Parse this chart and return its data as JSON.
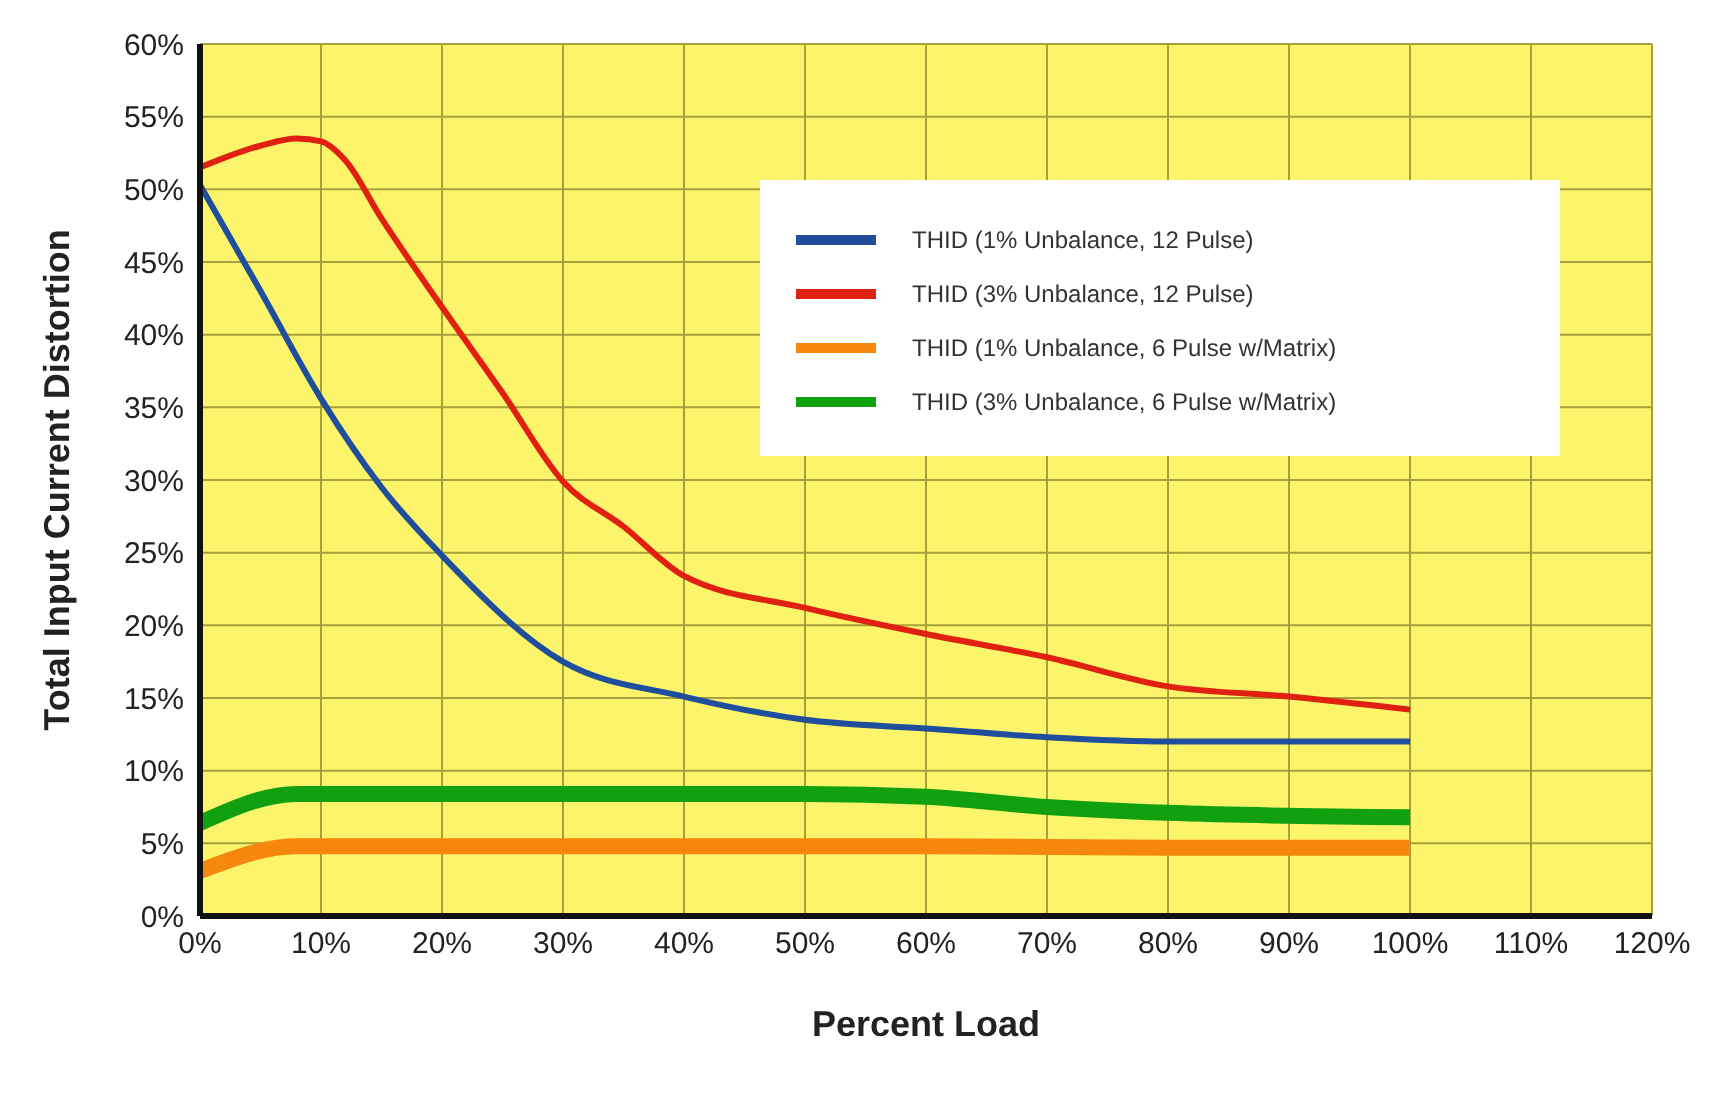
{
  "chart_data": {
    "type": "line",
    "xlabel": "Percent Load",
    "ylabel": "Total Input Current Distortion",
    "xlim": [
      0,
      120
    ],
    "ylim": [
      0,
      60
    ],
    "xticks": [
      {
        "value": 0,
        "label": "0%"
      },
      {
        "value": 10,
        "label": "10%"
      },
      {
        "value": 20,
        "label": "20%"
      },
      {
        "value": 30,
        "label": "30%"
      },
      {
        "value": 40,
        "label": "40%"
      },
      {
        "value": 50,
        "label": "50%"
      },
      {
        "value": 60,
        "label": "60%"
      },
      {
        "value": 70,
        "label": "70%"
      },
      {
        "value": 80,
        "label": "80%"
      },
      {
        "value": 90,
        "label": "90%"
      },
      {
        "value": 100,
        "label": "100%"
      },
      {
        "value": 110,
        "label": "110%"
      },
      {
        "value": 120,
        "label": "120%"
      }
    ],
    "yticks": [
      {
        "value": 0,
        "label": "0%"
      },
      {
        "value": 5,
        "label": "5%"
      },
      {
        "value": 10,
        "label": "10%"
      },
      {
        "value": 15,
        "label": "15%"
      },
      {
        "value": 20,
        "label": "20%"
      },
      {
        "value": 25,
        "label": "25%"
      },
      {
        "value": 30,
        "label": "30%"
      },
      {
        "value": 35,
        "label": "35%"
      },
      {
        "value": 40,
        "label": "40%"
      },
      {
        "value": 45,
        "label": "45%"
      },
      {
        "value": 50,
        "label": "50%"
      },
      {
        "value": 55,
        "label": "55%"
      },
      {
        "value": 60,
        "label": "60%"
      }
    ],
    "grid": true,
    "legend": "top right",
    "marker": "none",
    "line_style": "solid",
    "series": [
      {
        "name": "THID (1% Unbalance, 12 Pulse)",
        "color": "#1f4e9c",
        "x": [
          0,
          5,
          10,
          15,
          20,
          30,
          40,
          50,
          60,
          70,
          80,
          90,
          100
        ],
        "values": [
          50.3,
          43,
          35.6,
          29.5,
          24.8,
          17.5,
          15.1,
          13.5,
          12.9,
          12.3,
          12,
          12,
          12
        ]
      },
      {
        "name": "THID (3% Unbalance, 12 Pulse)",
        "color": "#e02010",
        "x": [
          0,
          5,
          8,
          10,
          12,
          15,
          20,
          25,
          30,
          35,
          40,
          50,
          60,
          70,
          80,
          90,
          100
        ],
        "values": [
          51.5,
          53,
          53.5,
          53.3,
          52,
          48,
          41.9,
          36,
          29.9,
          26.8,
          23.4,
          21.2,
          19.4,
          17.8,
          15.8,
          15.1,
          14.2
        ]
      },
      {
        "name": "THID (1% Unbalance, 6 Pulse w/Matrix)",
        "color": "#f5870f",
        "x": [
          0,
          8,
          20,
          40,
          60,
          80,
          100
        ],
        "values": [
          3.1,
          4.8,
          4.8,
          4.8,
          4.8,
          4.7,
          4.7
        ]
      },
      {
        "name": "THID (3% Unbalance, 6 Pulse w/Matrix)",
        "color": "#10a010",
        "x": [
          0,
          8,
          20,
          40,
          50,
          60,
          70,
          80,
          100
        ],
        "values": [
          6.4,
          8.4,
          8.4,
          8.4,
          8.4,
          8.2,
          7.5,
          7.1,
          6.8
        ]
      }
    ]
  }
}
